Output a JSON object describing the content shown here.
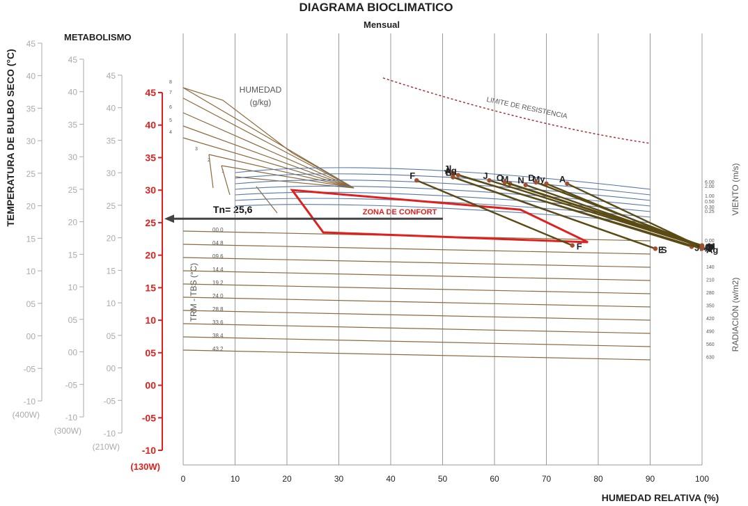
{
  "chart_data": {
    "type": "scatter",
    "title": "DIAGRAMA BIOCLIMATICO",
    "subtitle": "Mensual",
    "xlabel": "HUMEDAD RELATIVA (%)",
    "ylabel": "TEMPERATURA DE BULBO SECO (°C)",
    "xlim": [
      0,
      100
    ],
    "ylim": [
      -10,
      45
    ],
    "x_ticks": [
      "0",
      "10",
      "20",
      "30",
      "40",
      "50",
      "60",
      "70",
      "80",
      "90",
      "100"
    ],
    "grid": "vertical",
    "metabolism_label": "METABOLISMO",
    "metabolism_scales": [
      {
        "name": "(400W)",
        "color": "#aaaaaa",
        "top": 45,
        "labels": [
          "45",
          "40",
          "35",
          "30",
          "25",
          "20",
          "15",
          "10",
          "05",
          "00",
          "-05",
          "-10"
        ]
      },
      {
        "name": "(300W)",
        "color": "#aaaaaa",
        "top": 45,
        "labels": [
          "45",
          "40",
          "35",
          "30",
          "25",
          "20",
          "15",
          "10",
          "05",
          "00",
          "-05",
          "-10"
        ]
      },
      {
        "name": "(210W)",
        "color": "#aaaaaa",
        "top": 45,
        "labels": [
          "45",
          "40",
          "35",
          "30",
          "25",
          "20",
          "15",
          "10",
          "05",
          "00",
          "-05",
          "-10"
        ]
      },
      {
        "name": "(130W)",
        "color": "#e0201e",
        "top": 45,
        "labels": [
          "45",
          "40",
          "35",
          "30",
          "25",
          "20",
          "15",
          "10",
          "05",
          "00",
          "-05",
          "-10"
        ]
      }
    ],
    "humidity_label": [
      "HUMEDAD",
      "(g/kg)"
    ],
    "humidity_values": [
      "8",
      "7",
      "6",
      "5",
      "4",
      "3",
      "2",
      "1"
    ],
    "comfort_zone_label": "ZONA DE CONFORT",
    "comfort_zone": [
      [
        21,
        30
      ],
      [
        65,
        27
      ],
      [
        78,
        22
      ],
      [
        27,
        23.5
      ]
    ],
    "neutral_label": "Tn= 25,6",
    "neutral_temp": 25.6,
    "limit_label": "LIMITE DE RESISTENCIA",
    "trm_label": "TRM - TBS  (°C)",
    "trm_values": [
      "00.0",
      "04.8",
      "09.6",
      "14.4",
      "19.2",
      "24.0",
      "28.8",
      "33.6",
      "38.4",
      "43.2"
    ],
    "wind_label": "VIENTO  (m/s)",
    "wind_values": [
      "6.00",
      "2.00",
      "1.00",
      "0.50",
      "0.30",
      "0.25",
      "0.00"
    ],
    "radiation_label": "RADIACIÓN  (w/m2)",
    "radiation_values": [
      "140",
      "210",
      "280",
      "350",
      "420",
      "490",
      "560",
      "630"
    ],
    "series": [
      {
        "month": "E",
        "x1": 52,
        "y1": 32.0,
        "x2": 91,
        "y2": 21.0
      },
      {
        "month": "F",
        "x1": 45,
        "y1": 31.5,
        "x2": 75,
        "y2": 21.5
      },
      {
        "month": "M",
        "x1": 63,
        "y1": 31.0,
        "x2": 100,
        "y2": 21.5
      },
      {
        "month": "A",
        "x1": 74,
        "y1": 31.0,
        "x2": 100,
        "y2": 21.2
      },
      {
        "month": "My",
        "x1": 70,
        "y1": 31.0,
        "x2": 99,
        "y2": 21.4
      },
      {
        "month": "J",
        "x1": 59,
        "y1": 31.5,
        "x2": 100,
        "y2": 21.3
      },
      {
        "month": "Jl",
        "x1": 52,
        "y1": 32.6,
        "x2": 98,
        "y2": 21.3
      },
      {
        "month": "Ag",
        "x1": 53,
        "y1": 32.3,
        "x2": 100,
        "y2": 21.0
      },
      {
        "month": "S",
        "x1": 52,
        "y1": 32.0,
        "x2": 91,
        "y2": 21.0
      },
      {
        "month": "O",
        "x1": 62,
        "y1": 31.2,
        "x2": 100,
        "y2": 21.4
      },
      {
        "month": "N",
        "x1": 66,
        "y1": 30.8,
        "x2": 100,
        "y2": 21.4
      },
      {
        "month": "D",
        "x1": 68,
        "y1": 31.2,
        "x2": 100,
        "y2": 21.4
      }
    ],
    "colors": {
      "brown_line": "#8b6a3c",
      "data_line": "#5a4a14",
      "point": "#a05030",
      "comfort": "#e0201e",
      "blue": "#5577aa",
      "grid": "#999999",
      "limit": "#a33030",
      "arrow": "#444444"
    }
  }
}
